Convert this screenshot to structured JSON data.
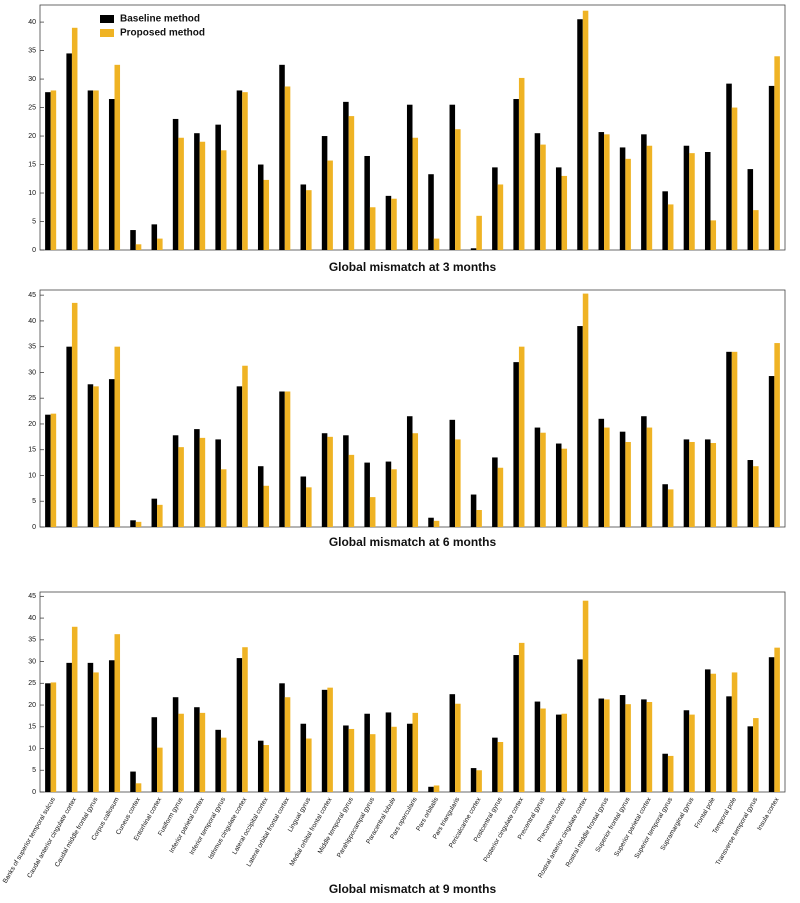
{
  "chart_data": [
    {
      "type": "bar",
      "title": "Global mismatch at 3 months",
      "ylim": [
        0,
        43
      ],
      "yticks": [
        0,
        5,
        10,
        15,
        20,
        25,
        30,
        35,
        40
      ],
      "legend": "upper left",
      "series": [
        {
          "name": "Baseline method",
          "color": "#000000",
          "values": [
            27.7,
            34.5,
            28,
            26.5,
            3.5,
            4.5,
            23,
            20.5,
            22,
            28,
            15,
            32.5,
            11.5,
            20,
            26,
            16.5,
            9.5,
            25.5,
            13.3,
            25.5,
            0.3,
            14.5,
            26.5,
            20.5,
            14.5,
            40.5,
            20.7,
            18,
            20.3,
            10.3,
            18.3,
            17.2,
            29.2,
            14.2,
            28.8
          ]
        },
        {
          "name": "Proposed method",
          "color": "#efb324",
          "values": [
            28,
            39,
            28,
            32.5,
            1,
            2,
            19.7,
            19,
            17.5,
            27.7,
            12.3,
            28.7,
            10.5,
            15.7,
            23.5,
            7.5,
            9,
            19.7,
            2,
            21.2,
            6,
            11.5,
            30.2,
            18.5,
            13,
            42,
            20.3,
            16,
            18.3,
            8,
            17,
            5.2,
            25,
            7,
            34
          ]
        }
      ]
    },
    {
      "type": "bar",
      "title": "Global mismatch at 6 months",
      "ylim": [
        0,
        46
      ],
      "yticks": [
        0,
        5,
        10,
        15,
        20,
        25,
        30,
        35,
        40,
        45
      ],
      "series": [
        {
          "color": "#000000",
          "values": [
            21.8,
            35,
            27.7,
            28.7,
            1.3,
            5.5,
            17.8,
            19,
            17,
            27.3,
            11.8,
            26.3,
            9.8,
            18.2,
            17.8,
            12.5,
            12.7,
            21.5,
            1.8,
            20.8,
            6.3,
            13.5,
            32,
            19.3,
            16.2,
            39,
            21,
            18.5,
            21.5,
            8.3,
            17,
            17,
            34,
            13,
            29.3
          ]
        },
        {
          "color": "#efb324",
          "values": [
            22,
            43.5,
            27.3,
            35,
            1,
            4.3,
            15.5,
            17.3,
            11.2,
            31.3,
            8,
            26.3,
            7.7,
            17.5,
            14,
            5.8,
            11.2,
            18.2,
            1.2,
            17,
            3.3,
            11.5,
            35,
            18.3,
            15.2,
            45.3,
            19.3,
            16.5,
            19.3,
            7.3,
            16.5,
            16.3,
            34,
            11.8,
            35.7
          ]
        }
      ]
    },
    {
      "type": "bar",
      "title": "Global mismatch at 9 months",
      "ylim": [
        0,
        46
      ],
      "yticks": [
        0,
        5,
        10,
        15,
        20,
        25,
        30,
        35,
        40,
        45
      ],
      "categories": [
        "Banks of superior temporal sulcus",
        "Caudal anterior cingulate cortex",
        "Caudal middle frontal gyrus",
        "Corpus callosum",
        "Cuneus cortex",
        "Entorhinal cortex",
        "Fusiform gyrus",
        "Inferior parietal cortex",
        "Inferior temporal gyrus",
        "Isthmus cingulate cortex",
        "Lateral occipital cortex",
        "Lateral orbital frontal cortex",
        "Lingual gyrus",
        "Medial orbital frontal cortex",
        "Middle temporal gyrus",
        "Parahippocampal gyrus",
        "Paracentral lobule",
        "Pars opercularis",
        "Pars orbitalis",
        "Pars triangularis",
        "Pericalcarine cortex",
        "Postcentral gyrus",
        "Posterior cingulate cortex",
        "Precentral gyrus",
        "Precuneus cortex",
        "Rostral anterior cingulate cortex",
        "Rostral middle frontal gyrus",
        "Superior frontal gyrus",
        "Superior parietal cortex",
        "Superior temporal gyrus",
        "Supramarginal gyrus",
        "Frontal pole",
        "Temporal pole",
        "Transverse temporal gyrus",
        "Insula cortex"
      ],
      "series": [
        {
          "color": "#000000",
          "values": [
            25,
            29.7,
            29.7,
            30.3,
            4.7,
            17.2,
            21.8,
            19.5,
            14.3,
            30.8,
            11.8,
            25,
            15.7,
            23.5,
            15.3,
            18,
            18.3,
            15.7,
            1.2,
            22.5,
            5.5,
            12.5,
            31.5,
            20.8,
            17.8,
            30.5,
            21.5,
            22.3,
            21.3,
            8.8,
            18.8,
            28.2,
            22,
            15.1,
            31
          ]
        },
        {
          "color": "#efb324",
          "values": [
            25.2,
            38,
            27.5,
            36.3,
            2,
            10.2,
            18,
            18.2,
            12.5,
            33.3,
            10.8,
            21.8,
            12.3,
            24,
            14.5,
            13.3,
            15,
            18.2,
            1.5,
            20.3,
            5,
            11.5,
            34.3,
            19.2,
            18,
            44,
            21.3,
            20.2,
            20.7,
            8.3,
            17.8,
            27.2,
            27.5,
            17,
            33.2
          ]
        }
      ]
    }
  ]
}
